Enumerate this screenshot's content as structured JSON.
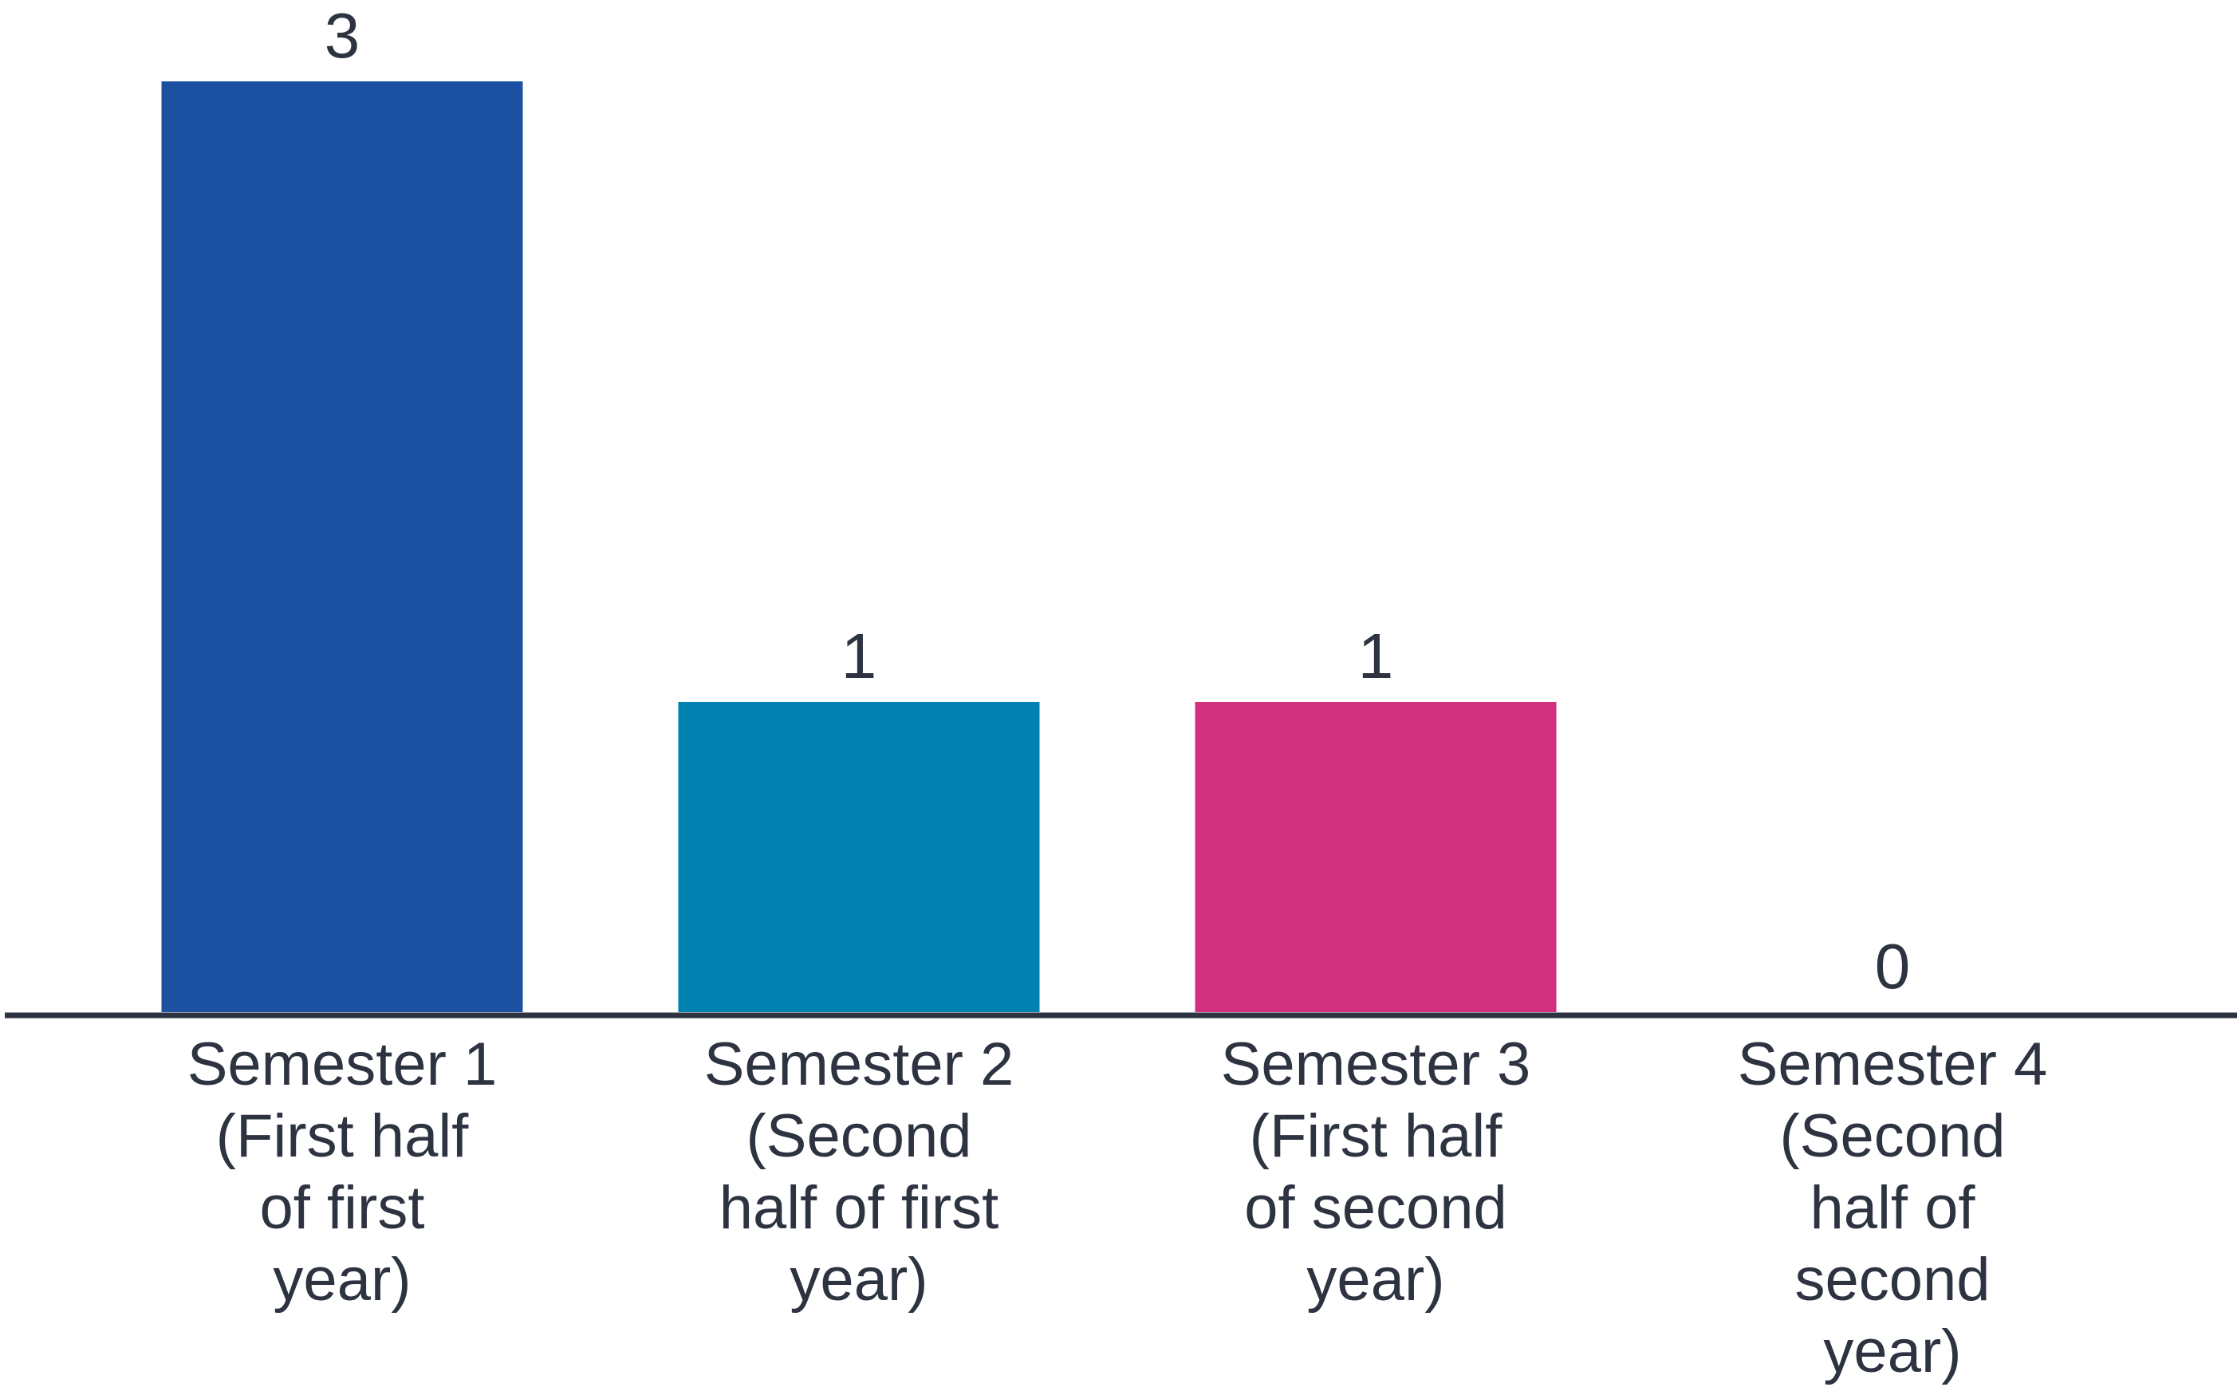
{
  "chart_data": {
    "type": "bar",
    "title": "",
    "xlabel": "",
    "ylabel": "",
    "categories": [
      "Semester 1 (First half of first year)",
      "Semester 2 (Second half of first year)",
      "Semester 3 (First half of second year)",
      "Semester 4 (Second half of second year)"
    ],
    "category_lines": [
      [
        "Semester 1",
        "(First half",
        "of first",
        "year)"
      ],
      [
        "Semester 2",
        "(Second",
        "half of first",
        "year)"
      ],
      [
        "Semester 3",
        "(First half",
        "of second",
        "year)"
      ],
      [
        "Semester 4",
        "(Second",
        "half of",
        "second",
        "year)"
      ]
    ],
    "values": [
      3,
      1,
      1,
      0
    ],
    "data_labels": [
      "3",
      "1",
      "1",
      "0"
    ],
    "colors": [
      "#1c51a2",
      "#0081b0",
      "#d1307c",
      "#8a8f98"
    ],
    "ylim": [
      0,
      3
    ],
    "grid": false,
    "legend": "none",
    "axis_color": "#2d3340",
    "text_color": "#2d3340"
  }
}
